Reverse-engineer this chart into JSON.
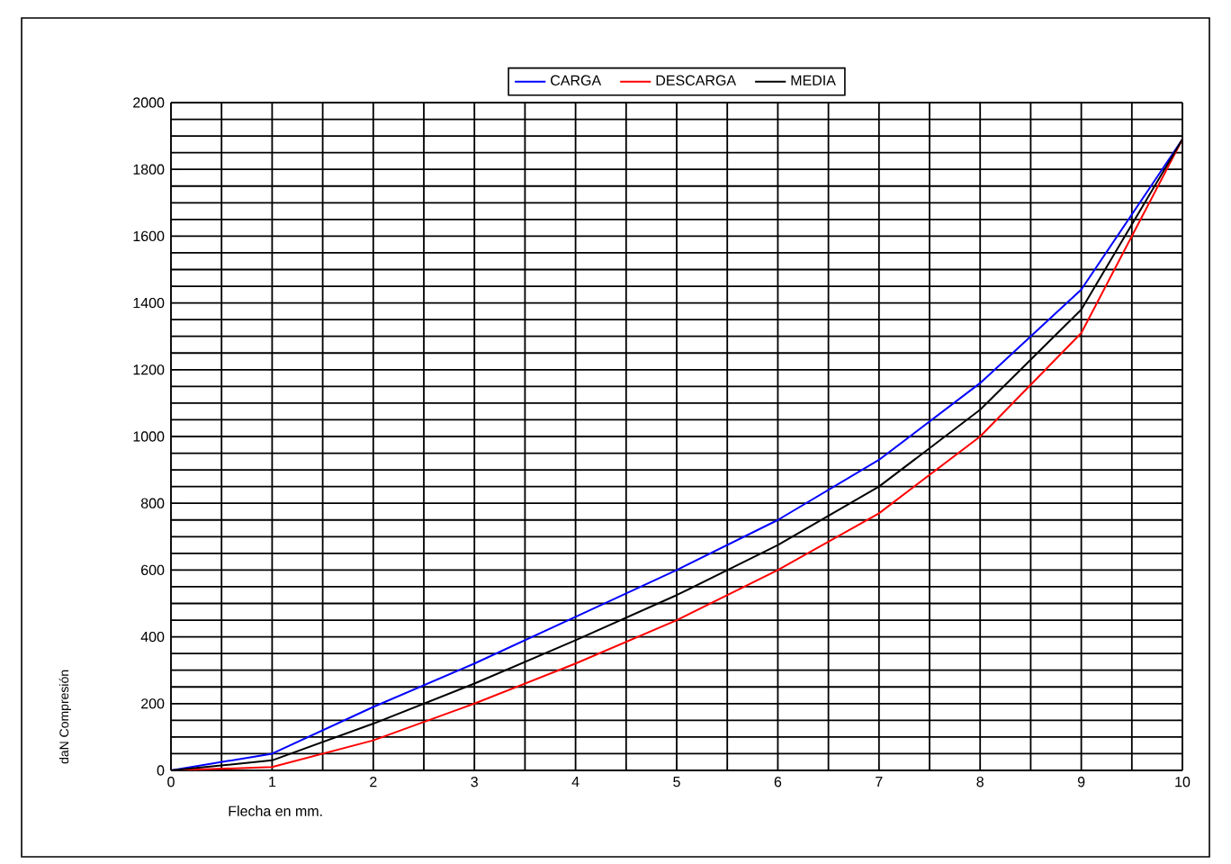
{
  "chart_data": {
    "type": "line",
    "xlabel": "Flecha en mm.",
    "ylabel": "daN Compresión",
    "x": [
      0,
      1,
      2,
      3,
      4,
      5,
      6,
      7,
      8,
      9,
      10
    ],
    "series": [
      {
        "name": "CARGA",
        "color": "#0000ff",
        "values": [
          0,
          50,
          190,
          320,
          460,
          600,
          750,
          930,
          1160,
          1440,
          1890
        ]
      },
      {
        "name": "DESCARGA",
        "color": "#ff0000",
        "values": [
          0,
          10,
          90,
          200,
          320,
          450,
          600,
          770,
          1000,
          1310,
          1890
        ]
      },
      {
        "name": "MEDIA",
        "color": "#000000",
        "values": [
          0,
          30,
          140,
          260,
          390,
          525,
          675,
          850,
          1080,
          1380,
          1890
        ]
      }
    ],
    "xlim": [
      0,
      10
    ],
    "ylim": [
      0,
      2000
    ],
    "xticks": [
      0,
      1,
      2,
      3,
      4,
      5,
      6,
      7,
      8,
      9,
      10
    ],
    "yticks": [
      0,
      200,
      400,
      600,
      800,
      1000,
      1200,
      1400,
      1600,
      1800,
      2000
    ],
    "grid": true,
    "legend": "top",
    "marker": "none",
    "line_style": "solid"
  }
}
